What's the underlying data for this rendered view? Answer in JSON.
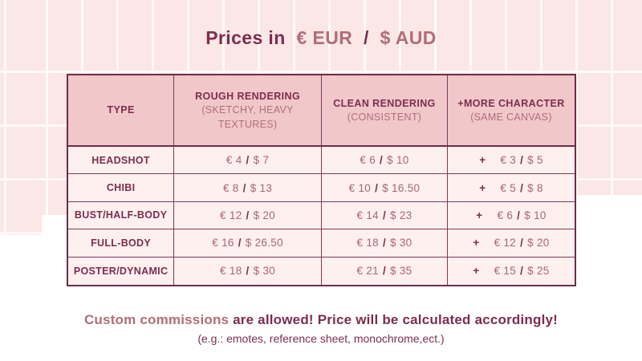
{
  "colors": {
    "background_pink": "#fbe7e5",
    "grid_line": "#fffafa",
    "background_white": "#ffffff",
    "table_header_bg": "#f1c7c9",
    "table_cell_bg": "#fdf0ee",
    "border_dark": "#6f2a4c",
    "text_dark": "#7c2d50",
    "text_rose": "#b06e7b"
  },
  "title": {
    "prefix": "Prices in",
    "eur": "€ EUR",
    "separator": "/",
    "aud": "$ AUD"
  },
  "table": {
    "price_separator": "/",
    "extra_prefix": "+",
    "columns": [
      {
        "title": "TYPE",
        "subtitle": ""
      },
      {
        "title": "ROUGH RENDERING",
        "subtitle": "(SKETCHY, HEAVY TEXTURES)"
      },
      {
        "title": "CLEAN RENDERING",
        "subtitle": "(CONSISTENT)"
      },
      {
        "title": "+MORE CHARACTER",
        "subtitle": "(SAME CANVAS)"
      }
    ],
    "rows": [
      {
        "type": "HEADSHOT",
        "rough": [
          "€ 4",
          "$ 7"
        ],
        "clean": [
          "€ 6",
          "$ 10"
        ],
        "extra": [
          "€ 3",
          "$ 5"
        ]
      },
      {
        "type": "CHIBI",
        "rough": [
          "€ 8",
          "$ 13"
        ],
        "clean": [
          "€ 10",
          "$ 16.50"
        ],
        "extra": [
          "€ 5",
          "$ 8"
        ]
      },
      {
        "type": "BUST/HALF-BODY",
        "rough": [
          "€ 12",
          "$ 20"
        ],
        "clean": [
          "€ 14",
          "$ 23"
        ],
        "extra": [
          "€ 6",
          "$ 10"
        ]
      },
      {
        "type": "FULL-BODY",
        "rough": [
          "€ 16",
          "$ 26.50"
        ],
        "clean": [
          "€ 18",
          "$ 30"
        ],
        "extra": [
          "€ 12",
          "$ 20"
        ]
      },
      {
        "type": "POSTER/DYNAMIC",
        "rough": [
          "€ 18",
          "$ 30"
        ],
        "clean": [
          "€ 21",
          "$ 35"
        ],
        "extra": [
          "€ 15",
          "$ 25"
        ]
      }
    ]
  },
  "footer": {
    "line1_highlight": "Custom commissions",
    "line1_rest": " are allowed! Price will be calculated accordingly!",
    "line2": "(e.g.: emotes, reference sheet, monochrome,ect.)"
  }
}
